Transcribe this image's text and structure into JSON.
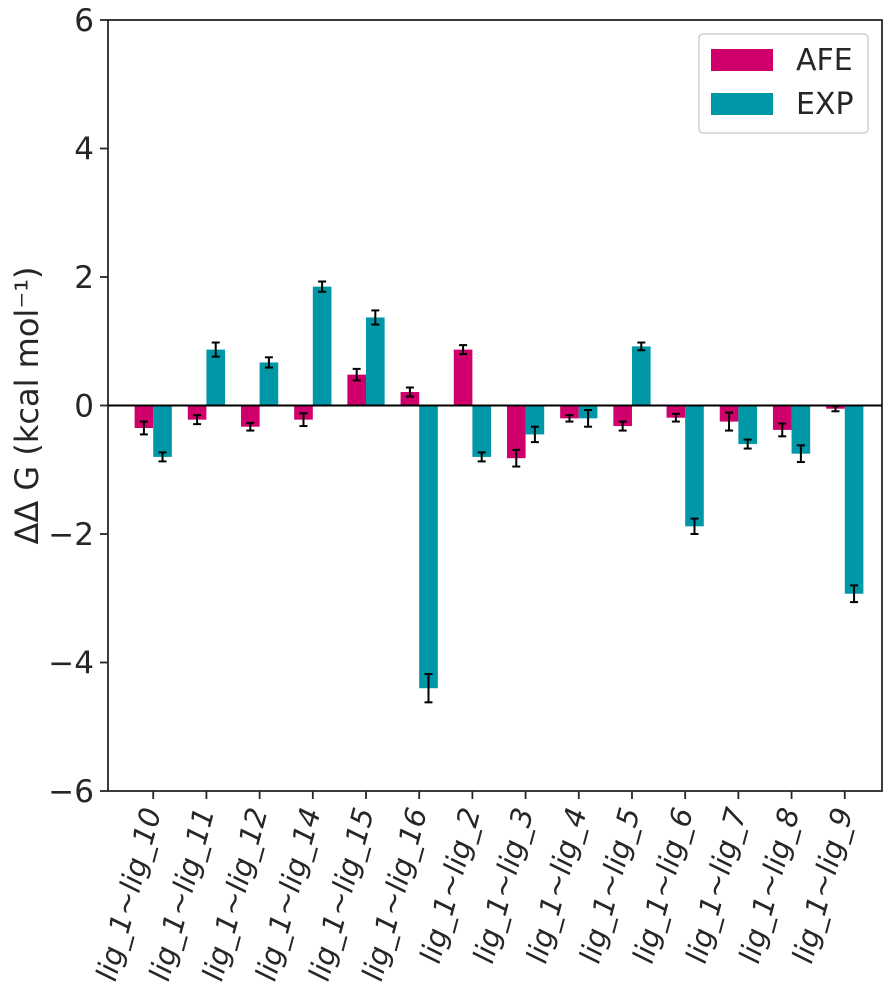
{
  "chart_data": {
    "type": "bar",
    "title": "",
    "xlabel": "",
    "ylabel": "ΔΔ G (kcal mol⁻¹)",
    "ylim": [
      -6,
      6
    ],
    "yticks": [
      6,
      4,
      2,
      0,
      -2,
      -4,
      -6
    ],
    "ytick_labels": [
      "6",
      "4",
      "2",
      "0",
      "−2",
      "−4",
      "−6"
    ],
    "grid": false,
    "legend_position": "top-right",
    "categories": [
      "lig_1~lig_10",
      "lig_1~lig_11",
      "lig_1~lig_12",
      "lig_1~lig_14",
      "lig_1~lig_15",
      "lig_1~lig_16",
      "lig_1~lig_2",
      "lig_1~lig_3",
      "lig_1~lig_4",
      "lig_1~lig_5",
      "lig_1~lig_6",
      "lig_1~lig_7",
      "lig_1~lig_8",
      "lig_1~lig_9"
    ],
    "series": [
      {
        "name": "AFE",
        "color": "#cf006b",
        "values": [
          -0.35,
          -0.22,
          -0.33,
          -0.22,
          0.48,
          0.21,
          0.87,
          -0.82,
          -0.2,
          -0.32,
          -0.19,
          -0.25,
          -0.38,
          -0.05
        ],
        "errors": [
          0.1,
          0.07,
          0.06,
          0.1,
          0.09,
          0.07,
          0.07,
          0.13,
          0.05,
          0.07,
          0.06,
          0.14,
          0.1,
          0.04
        ]
      },
      {
        "name": "EXP",
        "color": "#0097a7",
        "values": [
          -0.8,
          0.87,
          0.67,
          1.85,
          1.37,
          -4.4,
          -0.8,
          -0.45,
          -0.2,
          0.92,
          -1.88,
          -0.6,
          -0.75,
          -2.93
        ]
      }
    ],
    "exp_errors": [
      0.07,
      0.11,
      0.08,
      0.08,
      0.11,
      0.22,
      0.07,
      0.12,
      0.13,
      0.06,
      0.12,
      0.07,
      0.13,
      0.13
    ]
  }
}
